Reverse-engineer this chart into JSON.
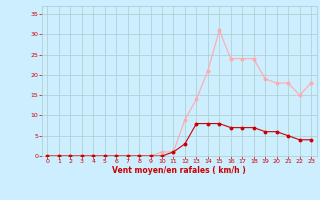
{
  "x": [
    0,
    1,
    2,
    3,
    4,
    5,
    6,
    7,
    8,
    9,
    10,
    11,
    12,
    13,
    14,
    15,
    16,
    17,
    18,
    19,
    20,
    21,
    22,
    23
  ],
  "mean_wind": [
    0,
    0,
    0,
    0,
    0,
    0,
    0,
    0,
    0,
    0,
    0,
    1,
    3,
    8,
    8,
    8,
    7,
    7,
    7,
    6,
    6,
    5,
    4,
    4
  ],
  "gusts": [
    0,
    0,
    0,
    0,
    0,
    0,
    0,
    0,
    0,
    0,
    1,
    1,
    9,
    14,
    21,
    31,
    24,
    24,
    24,
    19,
    18,
    18,
    15,
    18
  ],
  "mean_color": "#cc0000",
  "gust_color": "#ffaaaa",
  "bg_color": "#cceeff",
  "grid_color": "#aacccc",
  "axis_color": "#cc0000",
  "xlabel": "Vent moyen/en rafales ( km/h )",
  "ylim": [
    0,
    37
  ],
  "yticks": [
    0,
    5,
    10,
    15,
    20,
    25,
    30,
    35
  ],
  "xlim": [
    -0.5,
    23.5
  ],
  "xticks": [
    0,
    1,
    2,
    3,
    4,
    5,
    6,
    7,
    8,
    9,
    10,
    11,
    12,
    13,
    14,
    15,
    16,
    17,
    18,
    19,
    20,
    21,
    22,
    23
  ]
}
